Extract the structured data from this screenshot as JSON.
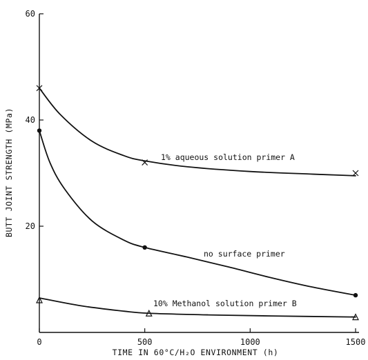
{
  "chart_data": {
    "type": "line",
    "title": "",
    "xlabel": "TIME IN 60°C/H₂O ENVIRONMENT (h)",
    "ylabel": "BUTT JOINT STRENGTH (MPa)",
    "xlim": [
      0,
      1500
    ],
    "ylim": [
      0,
      60
    ],
    "xticks": [
      0,
      500,
      1000,
      1500
    ],
    "yticks": [
      20,
      40,
      60
    ],
    "x_tick_labels": [
      "0",
      "500",
      "1000",
      "1500"
    ],
    "y_tick_labels": [
      "20",
      "40",
      "60"
    ],
    "grid": false,
    "legend": "none (series labeled inline)",
    "series": [
      {
        "name": "1% aqueous solution primer A",
        "marker": "x",
        "points": [
          [
            0,
            46
          ],
          [
            500,
            32
          ],
          [
            1500,
            30
          ]
        ],
        "curve": [
          [
            0,
            46
          ],
          [
            100,
            41
          ],
          [
            250,
            36
          ],
          [
            400,
            33.3
          ],
          [
            500,
            32.3
          ],
          [
            700,
            31.2
          ],
          [
            1000,
            30.3
          ],
          [
            1300,
            29.8
          ],
          [
            1500,
            29.5
          ]
        ]
      },
      {
        "name": "no surface primer",
        "marker": "dot",
        "points": [
          [
            0,
            38
          ],
          [
            500,
            16
          ],
          [
            1500,
            7
          ]
        ],
        "curve": [
          [
            0,
            38
          ],
          [
            50,
            32
          ],
          [
            120,
            27
          ],
          [
            250,
            21
          ],
          [
            400,
            17.4
          ],
          [
            500,
            16
          ],
          [
            700,
            14.2
          ],
          [
            900,
            12.3
          ],
          [
            1100,
            10.3
          ],
          [
            1300,
            8.5
          ],
          [
            1500,
            7
          ]
        ]
      },
      {
        "name": "10% Methanol solution primer B",
        "marker": "triangle",
        "points": [
          [
            0,
            6
          ],
          [
            520,
            3.5
          ],
          [
            1500,
            2.8
          ]
        ],
        "curve": [
          [
            0,
            6.5
          ],
          [
            200,
            5
          ],
          [
            400,
            4
          ],
          [
            520,
            3.6
          ],
          [
            800,
            3.3
          ],
          [
            1100,
            3.1
          ],
          [
            1500,
            2.9
          ]
        ]
      }
    ]
  }
}
